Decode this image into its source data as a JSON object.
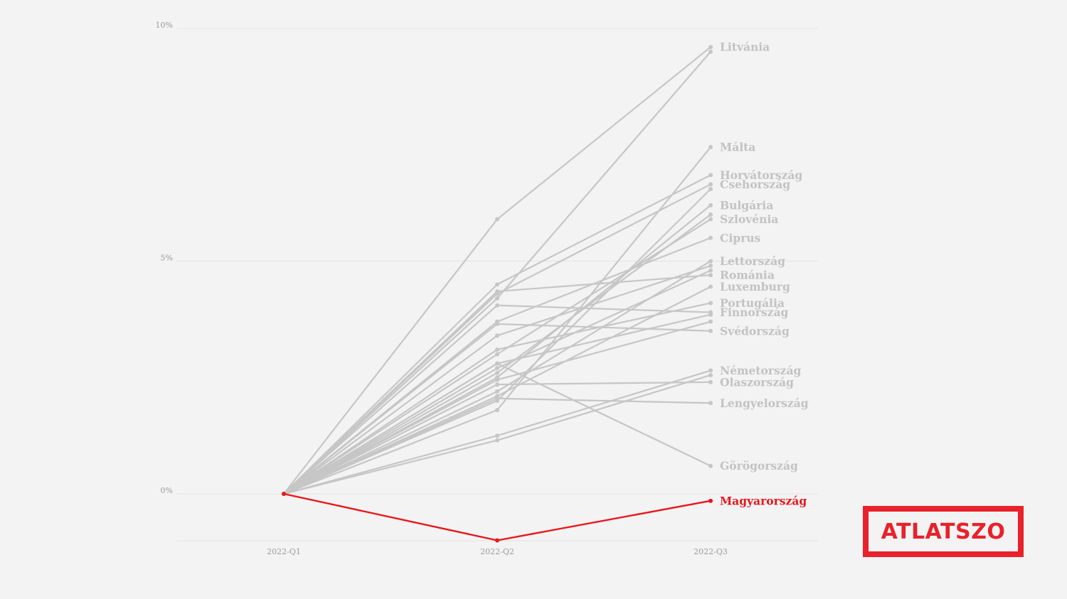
{
  "colors": {
    "background": "#f3f3f3",
    "line_default": "#c6c6c6",
    "label_default": "#c2c2c2",
    "highlight": "#e8171d",
    "grid": "#e3e3e3",
    "tick_text": "#9a9a9a"
  },
  "logo": {
    "text": "ATLATSZO",
    "color": "#e8212b"
  },
  "chart_data": {
    "type": "line",
    "title": "",
    "xlabel": "",
    "ylabel": "",
    "categories": [
      "2022-Q1",
      "2022-Q2",
      "2022-Q3"
    ],
    "ylim": [
      -1.0,
      10.0
    ],
    "y_ticks": [
      0,
      5,
      10
    ],
    "y_tick_labels": [
      "0%",
      "5%",
      "10%"
    ],
    "grid": true,
    "legend": "none (labels at line ends)",
    "series": [
      {
        "name": "Litvánia",
        "values": [
          0,
          5.9,
          9.6
        ]
      },
      {
        "name": "",
        "values": [
          0,
          4.2,
          9.5
        ]
      },
      {
        "name": "Málta",
        "values": [
          0,
          1.8,
          7.45
        ]
      },
      {
        "name": "Horvátország",
        "values": [
          0,
          4.5,
          6.85
        ]
      },
      {
        "name": "Csehország",
        "values": [
          0,
          4.3,
          6.65
        ]
      },
      {
        "name": "",
        "values": [
          0,
          2.0,
          6.55
        ]
      },
      {
        "name": "Bulgária",
        "values": [
          0,
          2.5,
          6.2
        ]
      },
      {
        "name": "",
        "values": [
          0,
          2.6,
          6.0
        ]
      },
      {
        "name": "Szlovénia",
        "values": [
          0,
          3.0,
          5.9
        ]
      },
      {
        "name": "Ciprus",
        "values": [
          0,
          3.7,
          5.5
        ]
      },
      {
        "name": "Lettország",
        "values": [
          0,
          2.2,
          5.0
        ]
      },
      {
        "name": "",
        "values": [
          0,
          3.4,
          4.9
        ]
      },
      {
        "name": "",
        "values": [
          0,
          2.7,
          4.8
        ]
      },
      {
        "name": "Románia",
        "values": [
          0,
          4.35,
          4.7
        ]
      },
      {
        "name": "Luxemburg",
        "values": [
          0,
          2.1,
          4.45
        ]
      },
      {
        "name": "Portugália",
        "values": [
          0,
          3.1,
          4.1
        ]
      },
      {
        "name": "Finnország",
        "values": [
          0,
          4.05,
          3.9
        ]
      },
      {
        "name": "",
        "values": [
          0,
          2.8,
          3.85
        ]
      },
      {
        "name": "",
        "values": [
          0,
          2.45,
          3.7
        ]
      },
      {
        "name": "Svédország",
        "values": [
          0,
          3.65,
          3.5
        ]
      },
      {
        "name": "Németország",
        "values": [
          0,
          1.25,
          2.65
        ]
      },
      {
        "name": "",
        "values": [
          0,
          1.15,
          2.55
        ]
      },
      {
        "name": "Olaszország",
        "values": [
          0,
          2.35,
          2.4
        ]
      },
      {
        "name": "Lengyelország",
        "values": [
          0,
          2.05,
          1.95
        ]
      },
      {
        "name": "Görögország",
        "values": [
          0,
          2.8,
          0.6
        ]
      },
      {
        "name": "Magyarország",
        "values": [
          0,
          -1.0,
          -0.15
        ],
        "highlight": true
      }
    ]
  }
}
